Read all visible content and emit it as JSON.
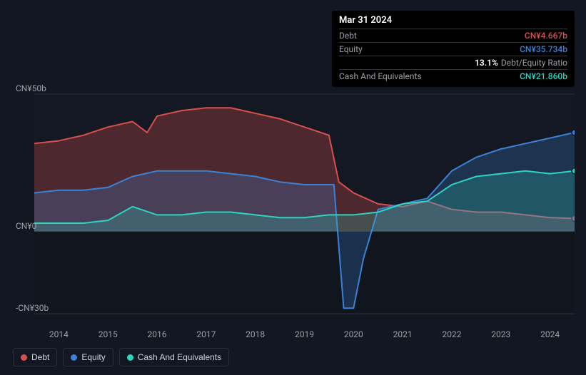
{
  "tooltip": {
    "date": "Mar 31 2024",
    "rows": [
      {
        "label": "Debt",
        "value": "CN¥4.667b",
        "color": "#d84f4f"
      },
      {
        "label": "Equity",
        "value": "CN¥35.734b",
        "color": "#3b82d6"
      },
      {
        "label": "",
        "ratio_pct": "13.1%",
        "ratio_label": "Debt/Equity Ratio",
        "color": "#ffffff"
      },
      {
        "label": "Cash And Equivalents",
        "value": "CN¥21.860b",
        "color": "#2dd4bf"
      }
    ]
  },
  "chart": {
    "background": "#131722",
    "grid_color": "#2a2e39",
    "y_min_value": -30,
    "y_max_value": 50,
    "y_ticks": [
      {
        "value": 50,
        "label": "CN¥50b"
      },
      {
        "value": 0,
        "label": "CN¥0"
      },
      {
        "value": -30,
        "label": "-CN¥30b"
      }
    ],
    "x_labels": [
      "2014",
      "2015",
      "2016",
      "2017",
      "2018",
      "2019",
      "2020",
      "2021",
      "2022",
      "2023",
      "2024"
    ],
    "x_start_year": 2013.5,
    "x_end_year": 2024.5,
    "series": [
      {
        "name": "Debt",
        "color": "#d84f4f",
        "fill_opacity": 0.3,
        "stroke_width": 2,
        "data": [
          [
            2013.5,
            32
          ],
          [
            2014,
            33
          ],
          [
            2014.5,
            35
          ],
          [
            2015,
            38
          ],
          [
            2015.5,
            40
          ],
          [
            2015.8,
            36
          ],
          [
            2016,
            42
          ],
          [
            2016.5,
            44
          ],
          [
            2017,
            45
          ],
          [
            2017.5,
            45
          ],
          [
            2018,
            43
          ],
          [
            2018.5,
            41
          ],
          [
            2019,
            38
          ],
          [
            2019.5,
            35
          ],
          [
            2019.7,
            18
          ],
          [
            2020,
            14
          ],
          [
            2020.5,
            10
          ],
          [
            2021,
            9
          ],
          [
            2021.5,
            11
          ],
          [
            2022,
            8
          ],
          [
            2022.5,
            7
          ],
          [
            2023,
            7
          ],
          [
            2023.5,
            6
          ],
          [
            2024,
            5
          ],
          [
            2024.5,
            4.7
          ]
        ],
        "end_marker": true
      },
      {
        "name": "Equity",
        "color": "#3b82d6",
        "fill_opacity": 0.25,
        "stroke_width": 2,
        "data": [
          [
            2013.5,
            14
          ],
          [
            2014,
            15
          ],
          [
            2014.5,
            15
          ],
          [
            2015,
            16
          ],
          [
            2015.5,
            20
          ],
          [
            2016,
            22
          ],
          [
            2016.5,
            22
          ],
          [
            2017,
            22
          ],
          [
            2017.5,
            21
          ],
          [
            2018,
            20
          ],
          [
            2018.5,
            18
          ],
          [
            2019,
            17
          ],
          [
            2019.5,
            17
          ],
          [
            2019.6,
            17
          ],
          [
            2019.8,
            -28
          ],
          [
            2020,
            -28
          ],
          [
            2020.2,
            -10
          ],
          [
            2020.5,
            8
          ],
          [
            2021,
            10
          ],
          [
            2021.5,
            12
          ],
          [
            2022,
            22
          ],
          [
            2022.5,
            27
          ],
          [
            2023,
            30
          ],
          [
            2023.5,
            32
          ],
          [
            2024,
            34
          ],
          [
            2024.5,
            36
          ]
        ],
        "end_marker": true
      },
      {
        "name": "Cash And Equivalents",
        "color": "#2dd4bf",
        "fill_opacity": 0.22,
        "stroke_width": 2,
        "data": [
          [
            2013.5,
            3
          ],
          [
            2014,
            3
          ],
          [
            2014.5,
            3
          ],
          [
            2015,
            4
          ],
          [
            2015.5,
            9
          ],
          [
            2016,
            6
          ],
          [
            2016.5,
            6
          ],
          [
            2017,
            7
          ],
          [
            2017.5,
            7
          ],
          [
            2018,
            6
          ],
          [
            2018.5,
            5
          ],
          [
            2019,
            5
          ],
          [
            2019.5,
            6
          ],
          [
            2020,
            6
          ],
          [
            2020.5,
            7
          ],
          [
            2021,
            10
          ],
          [
            2021.5,
            11
          ],
          [
            2022,
            17
          ],
          [
            2022.5,
            20
          ],
          [
            2023,
            21
          ],
          [
            2023.5,
            22
          ],
          [
            2024,
            21
          ],
          [
            2024.5,
            22
          ]
        ],
        "end_marker": true
      }
    ]
  },
  "legend": [
    {
      "label": "Debt",
      "color": "#d84f4f"
    },
    {
      "label": "Equity",
      "color": "#3b82d6"
    },
    {
      "label": "Cash And Equivalents",
      "color": "#2dd4bf"
    }
  ]
}
